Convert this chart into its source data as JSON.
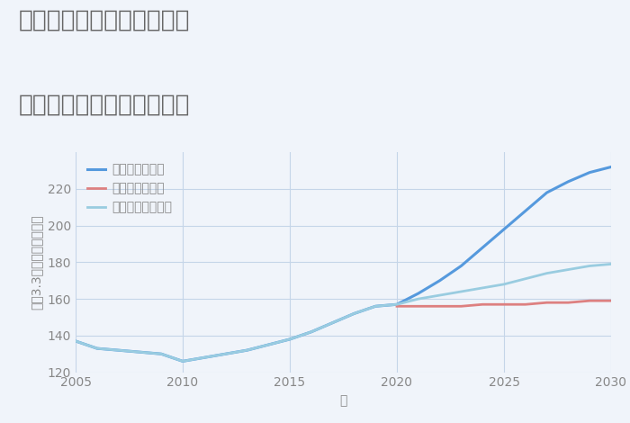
{
  "title_line1": "大阪府豊中市石橋麻田町の",
  "title_line2": "中古マンションの価格推移",
  "xlabel": "年",
  "ylabel": "坪（3.3㎡）単価（万円）",
  "xlim": [
    2005,
    2030
  ],
  "ylim": [
    120,
    240
  ],
  "yticks": [
    120,
    140,
    160,
    180,
    200,
    220
  ],
  "xticks": [
    2005,
    2010,
    2015,
    2020,
    2025,
    2030
  ],
  "background_color": "#f0f4fa",
  "plot_bg_color": "#f0f4fa",
  "grid_color": "#c5d5e8",
  "good_scenario": {
    "label": "グッドシナリオ",
    "color": "#5599dd",
    "x": [
      2005,
      2006,
      2007,
      2008,
      2009,
      2010,
      2011,
      2012,
      2013,
      2014,
      2015,
      2016,
      2017,
      2018,
      2019,
      2020,
      2021,
      2022,
      2023,
      2024,
      2025,
      2026,
      2027,
      2028,
      2029,
      2030
    ],
    "y": [
      137,
      133,
      132,
      131,
      130,
      126,
      128,
      130,
      132,
      135,
      138,
      142,
      147,
      152,
      156,
      157,
      163,
      170,
      178,
      188,
      198,
      208,
      218,
      224,
      229,
      232
    ]
  },
  "bad_scenario": {
    "label": "バッドシナリオ",
    "color": "#dd8080",
    "x": [
      2020,
      2021,
      2022,
      2023,
      2024,
      2025,
      2026,
      2027,
      2028,
      2029,
      2030
    ],
    "y": [
      156,
      156,
      156,
      156,
      157,
      157,
      157,
      158,
      158,
      159,
      159
    ]
  },
  "normal_scenario": {
    "label": "ノーマルシナリオ",
    "color": "#99cce0",
    "x": [
      2005,
      2006,
      2007,
      2008,
      2009,
      2010,
      2011,
      2012,
      2013,
      2014,
      2015,
      2016,
      2017,
      2018,
      2019,
      2020,
      2021,
      2022,
      2023,
      2024,
      2025,
      2026,
      2027,
      2028,
      2029,
      2030
    ],
    "y": [
      137,
      133,
      132,
      131,
      130,
      126,
      128,
      130,
      132,
      135,
      138,
      142,
      147,
      152,
      156,
      157,
      160,
      162,
      164,
      166,
      168,
      171,
      174,
      176,
      178,
      179
    ]
  },
  "title_color": "#666666",
  "tick_color": "#888888",
  "title_fontsize": 19,
  "legend_fontsize": 10,
  "tick_fontsize": 10,
  "axis_label_fontsize": 10
}
